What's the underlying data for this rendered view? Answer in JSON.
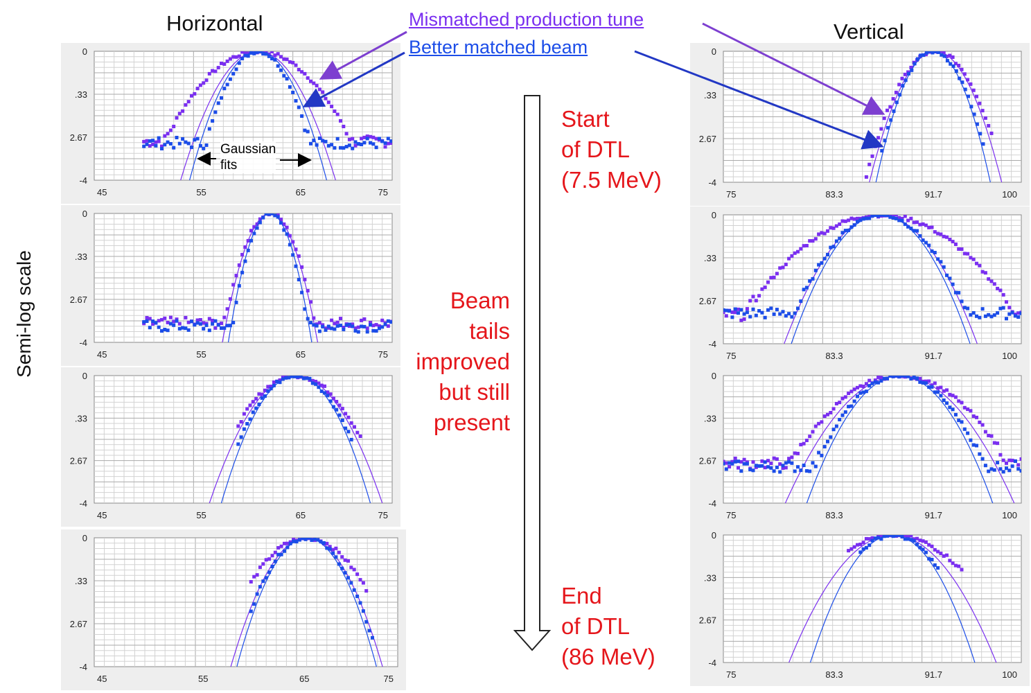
{
  "labels": {
    "horizontal": "Horizontal",
    "vertical": "Vertical",
    "ylabel": "Semi-log scale",
    "legend_mismatched": "Mismatched production tune",
    "legend_matched": "Better matched beam",
    "gaussian_line1": "Gaussian",
    "gaussian_line2": "fits",
    "start_line1": "Start",
    "start_line2": "of DTL",
    "start_line3": "(7.5 MeV)",
    "mid_line1": "Beam",
    "mid_line2": "tails",
    "mid_line3": "improved",
    "mid_line4": "but still",
    "mid_line5": "present",
    "end_line1": "End",
    "end_line2": "of DTL",
    "end_line3": "(86 MeV)"
  },
  "colors": {
    "mismatched": "#7a2ff0",
    "matched": "#1c4de8",
    "arrow_mismatched": "#7d3fd0",
    "arrow_matched": "#2238c4",
    "accent_red": "#e5161b"
  },
  "chart_data": [
    {
      "type": "scatter",
      "column": "Horizontal",
      "row": 1,
      "xlim": [
        45,
        75
      ],
      "ylim": [
        -4,
        0
      ],
      "xticks": [
        "45",
        "55",
        "65",
        "75"
      ],
      "yticks": [
        "0",
        ".33",
        "2.67",
        "-4"
      ],
      "series": [
        {
          "name": "Mismatched production tune",
          "center": 61.5,
          "sigma": 4.0,
          "floor": -2.8,
          "xrange": [
            50,
            75
          ],
          "tail": true,
          "fit_sigma": 2.6
        },
        {
          "name": "Better matched beam",
          "center": 61.5,
          "sigma": 2.2,
          "floor": -2.85,
          "xrange": [
            50,
            75
          ],
          "tail": true,
          "fit_sigma": 2.3
        }
      ]
    },
    {
      "type": "scatter",
      "column": "Horizontal",
      "row": 2,
      "xlim": [
        45,
        75
      ],
      "ylim": [
        -4,
        0
      ],
      "xticks": [
        "45",
        "55",
        "65",
        "75"
      ],
      "yticks": [
        "0",
        ".33",
        "2.67",
        "-4"
      ],
      "series": [
        {
          "name": "Mismatched production tune",
          "center": 62.7,
          "sigma": 1.75,
          "floor": -3.4,
          "xrange": [
            50,
            75
          ],
          "tail": true,
          "fit_sigma": 1.6
        },
        {
          "name": "Better matched beam",
          "center": 62.7,
          "sigma": 1.45,
          "floor": -3.5,
          "xrange": [
            50,
            75
          ],
          "tail": true,
          "fit_sigma": 1.4
        }
      ]
    },
    {
      "type": "scatter",
      "column": "Horizontal",
      "row": 3,
      "xlim": [
        45,
        75
      ],
      "ylim": [
        -4,
        0
      ],
      "xticks": [
        "45",
        "55",
        "65",
        "75"
      ],
      "yticks": [
        "0",
        ".33",
        "2.67",
        "-4"
      ],
      "series": [
        {
          "name": "Mismatched production tune",
          "center": 65.3,
          "sigma": 3.3,
          "floor": -9,
          "xrange": [
            59.5,
            72
          ],
          "tail": false,
          "fit_sigma": 2.9
        },
        {
          "name": "Better matched beam",
          "center": 65.3,
          "sigma": 2.8,
          "floor": -9,
          "xrange": [
            59.5,
            71
          ],
          "tail": false,
          "fit_sigma": 2.5
        }
      ]
    },
    {
      "type": "scatter",
      "column": "Horizontal",
      "row": 4,
      "xlim": [
        45,
        75
      ],
      "ylim": [
        -4,
        0
      ],
      "xticks": [
        "45",
        "55",
        "65",
        "75"
      ],
      "yticks": [
        "0",
        ".33",
        "2.67",
        "-4"
      ],
      "series": [
        {
          "name": "Mismatched production tune",
          "center": 66.0,
          "sigma": 3.3,
          "floor": -9,
          "xrange": [
            60.5,
            72
          ],
          "tail": false,
          "fit_sigma": 2.5
        },
        {
          "name": "Better matched beam",
          "center": 66.0,
          "sigma": 2.6,
          "floor": -9,
          "xrange": [
            60.5,
            72.5
          ],
          "tail": false,
          "fit_sigma": 2.3
        }
      ]
    },
    {
      "type": "scatter",
      "column": "Vertical",
      "row": 1,
      "xlim": [
        75,
        100
      ],
      "ylim": [
        -4,
        0
      ],
      "xticks": [
        "75",
        "83.3",
        "91.7",
        "100"
      ],
      "yticks": [
        "0",
        ".33",
        "2.67",
        "-4"
      ],
      "series": [
        {
          "name": "Mismatched production tune",
          "center": 92.8,
          "sigma": 2.1,
          "floor": -9,
          "xrange": [
            87,
            97.5
          ],
          "tail": false,
          "fit_sigma": 1.85
        },
        {
          "name": "Better matched beam",
          "center": 92.6,
          "sigma": 1.75,
          "floor": -9,
          "xrange": [
            88.3,
            97
          ],
          "tail": false,
          "fit_sigma": 1.6
        }
      ]
    },
    {
      "type": "scatter",
      "column": "Vertical",
      "row": 2,
      "xlim": [
        75,
        100
      ],
      "ylim": [
        -4,
        0
      ],
      "xticks": [
        "75",
        "83.3",
        "91.7",
        "100"
      ],
      "yticks": [
        "0",
        ".33",
        "2.67",
        "-4"
      ],
      "series": [
        {
          "name": "Mismatched production tune",
          "center": 88.2,
          "sigma": 4.6,
          "floor": -3.1,
          "xrange": [
            75,
            100
          ],
          "tail": true,
          "fit_sigma": 2.7
        },
        {
          "name": "Better matched beam",
          "center": 88.2,
          "sigma": 2.9,
          "floor": -3.05,
          "xrange": [
            75,
            100
          ],
          "tail": true,
          "fit_sigma": 2.5
        }
      ]
    },
    {
      "type": "scatter",
      "column": "Vertical",
      "row": 3,
      "xlim": [
        75,
        100
      ],
      "ylim": [
        -4,
        0
      ],
      "xticks": [
        "75",
        "83.3",
        "91.7",
        "100"
      ],
      "yticks": [
        "0",
        ".33",
        "2.67",
        "-4"
      ],
      "series": [
        {
          "name": "Mismatched production tune",
          "center": 89.8,
          "sigma": 3.9,
          "floor": -2.75,
          "xrange": [
            75,
            100
          ],
          "tail": true,
          "fit_sigma": 3.2
        },
        {
          "name": "Better matched beam",
          "center": 89.8,
          "sigma": 3.0,
          "floor": -2.85,
          "xrange": [
            75,
            100
          ],
          "tail": true,
          "fit_sigma": 2.6
        }
      ]
    },
    {
      "type": "scatter",
      "column": "Vertical",
      "row": 4,
      "xlim": [
        75,
        100
      ],
      "ylim": [
        -4,
        0
      ],
      "xticks": [
        "75",
        "83.3",
        "91.7",
        "100"
      ],
      "yticks": [
        "0",
        ".33",
        "2.67",
        "-4"
      ],
      "series": [
        {
          "name": "Mismatched production tune",
          "center": 89.2,
          "sigma": 3.9,
          "floor": -9,
          "xrange": [
            85.5,
            95
          ],
          "tail": false,
          "fit_sigma": 2.9
        },
        {
          "name": "Better matched beam",
          "center": 89.2,
          "sigma": 2.6,
          "floor": -9,
          "xrange": [
            86.5,
            93
          ],
          "tail": false,
          "fit_sigma": 2.3
        }
      ]
    }
  ]
}
